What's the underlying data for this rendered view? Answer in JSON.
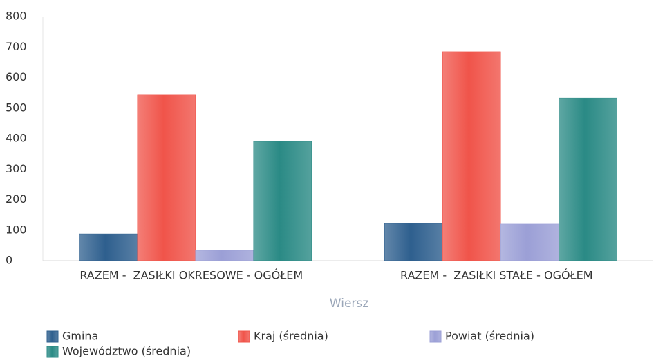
{
  "chart_data": {
    "type": "bar",
    "categories": [
      "RAZEM -  ZASIŁKI OKRESOWE - OGÓŁEM",
      "RAZEM -  ZASIŁKI STAŁE - OGÓŁEM"
    ],
    "x_label": "Wiersz",
    "series": [
      {
        "name": "Gmina",
        "color": "#2e5f8e",
        "values": [
          88,
          122
        ]
      },
      {
        "name": "Kraj (średnia)",
        "color": "#f0544a",
        "values": [
          545,
          685
        ]
      },
      {
        "name": "Powiat (średnia)",
        "color": "#9b9fd6",
        "values": [
          34,
          120
        ]
      },
      {
        "name": "Województwo (średnia)",
        "color": "#2a8a85",
        "values": [
          391,
          533
        ]
      }
    ],
    "ylim": [
      0,
      800
    ],
    "yticks": [
      0,
      100,
      200,
      300,
      400,
      500,
      600,
      700,
      800
    ],
    "grid": false
  }
}
